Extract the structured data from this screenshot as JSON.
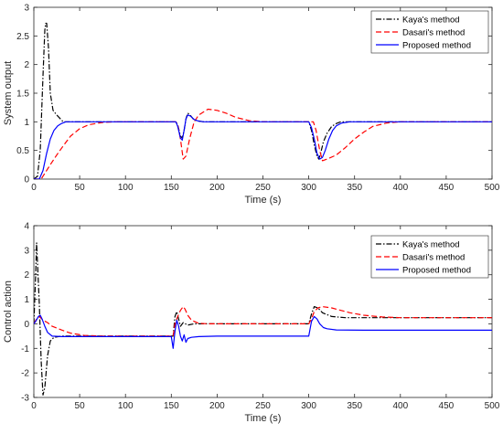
{
  "chart_data": [
    {
      "type": "line",
      "xlabel": "Time (s)",
      "ylabel": "System output",
      "xlim": [
        0,
        500
      ],
      "ylim": [
        0,
        3
      ],
      "xticks": [
        0,
        50,
        100,
        150,
        200,
        250,
        300,
        350,
        400,
        450,
        500
      ],
      "yticks": [
        0,
        0.5,
        1,
        1.5,
        2,
        2.5,
        3
      ],
      "ytick_labels": [
        "0",
        "0.5",
        "1",
        "1.5",
        "2",
        "2.5",
        "3"
      ],
      "grid": false,
      "legend_position": "top-right",
      "series": [
        {
          "name": "Kaya's method",
          "color": "#000000",
          "dash": "dashdot",
          "points": [
            [
              0,
              0
            ],
            [
              4,
              0.05
            ],
            [
              7,
              0.5
            ],
            [
              10,
              1.8
            ],
            [
              12,
              2.6
            ],
            [
              13,
              2.72
            ],
            [
              14,
              2.72
            ],
            [
              16,
              2.3
            ],
            [
              18,
              1.5
            ],
            [
              21,
              1.2
            ],
            [
              25,
              1.12
            ],
            [
              32,
              1.0
            ],
            [
              40,
              1.0
            ],
            [
              155,
              1.0
            ],
            [
              157,
              0.95
            ],
            [
              160,
              0.75
            ],
            [
              162,
              0.72
            ],
            [
              164,
              0.85
            ],
            [
              166,
              1.05
            ],
            [
              168,
              1.15
            ],
            [
              170,
              1.13
            ],
            [
              174,
              1.05
            ],
            [
              178,
              1.02
            ],
            [
              185,
              1.0
            ],
            [
              300,
              1.0
            ],
            [
              303,
              0.85
            ],
            [
              306,
              0.6
            ],
            [
              309,
              0.4
            ],
            [
              311,
              0.35
            ],
            [
              313,
              0.45
            ],
            [
              316,
              0.65
            ],
            [
              320,
              0.8
            ],
            [
              325,
              0.92
            ],
            [
              330,
              0.97
            ],
            [
              335,
              1.0
            ],
            [
              500,
              1.0
            ]
          ]
        },
        {
          "name": "Dasari's method",
          "color": "#ff0000",
          "dash": "dashed",
          "points": [
            [
              0,
              0
            ],
            [
              8,
              0.0
            ],
            [
              12,
              0.1
            ],
            [
              18,
              0.25
            ],
            [
              25,
              0.42
            ],
            [
              32,
              0.58
            ],
            [
              40,
              0.75
            ],
            [
              50,
              0.88
            ],
            [
              60,
              0.95
            ],
            [
              75,
              0.99
            ],
            [
              90,
              1.0
            ],
            [
              155,
              1.0
            ],
            [
              157,
              0.95
            ],
            [
              160,
              0.7
            ],
            [
              163,
              0.35
            ],
            [
              166,
              0.4
            ],
            [
              170,
              0.7
            ],
            [
              175,
              1.0
            ],
            [
              180,
              1.12
            ],
            [
              190,
              1.22
            ],
            [
              200,
              1.2
            ],
            [
              210,
              1.15
            ],
            [
              220,
              1.08
            ],
            [
              235,
              1.02
            ],
            [
              250,
              1.0
            ],
            [
              305,
              1.0
            ],
            [
              308,
              0.85
            ],
            [
              312,
              0.5
            ],
            [
              315,
              0.32
            ],
            [
              320,
              0.35
            ],
            [
              330,
              0.42
            ],
            [
              340,
              0.55
            ],
            [
              350,
              0.7
            ],
            [
              360,
              0.82
            ],
            [
              370,
              0.92
            ],
            [
              385,
              0.98
            ],
            [
              400,
              1.0
            ],
            [
              500,
              1.0
            ]
          ]
        },
        {
          "name": "Proposed method",
          "color": "#0000ff",
          "dash": "solid",
          "points": [
            [
              0,
              0
            ],
            [
              6,
              0.0
            ],
            [
              10,
              0.15
            ],
            [
              14,
              0.45
            ],
            [
              18,
              0.7
            ],
            [
              22,
              0.85
            ],
            [
              26,
              0.93
            ],
            [
              30,
              0.97
            ],
            [
              35,
              1.0
            ],
            [
              155,
              1.0
            ],
            [
              157,
              0.92
            ],
            [
              160,
              0.72
            ],
            [
              162,
              0.68
            ],
            [
              164,
              0.85
            ],
            [
              166,
              1.05
            ],
            [
              168,
              1.12
            ],
            [
              171,
              1.1
            ],
            [
              175,
              1.04
            ],
            [
              180,
              1.01
            ],
            [
              186,
              1.0
            ],
            [
              300,
              1.0
            ],
            [
              303,
              0.9
            ],
            [
              306,
              0.7
            ],
            [
              309,
              0.45
            ],
            [
              312,
              0.35
            ],
            [
              315,
              0.38
            ],
            [
              318,
              0.5
            ],
            [
              322,
              0.7
            ],
            [
              326,
              0.85
            ],
            [
              330,
              0.93
            ],
            [
              336,
              0.98
            ],
            [
              345,
              1.0
            ],
            [
              500,
              1.0
            ]
          ]
        }
      ]
    },
    {
      "type": "line",
      "xlabel": "Time (s)",
      "ylabel": "Control action",
      "xlim": [
        0,
        500
      ],
      "ylim": [
        -3,
        4
      ],
      "xticks": [
        0,
        50,
        100,
        150,
        200,
        250,
        300,
        350,
        400,
        450,
        500
      ],
      "yticks": [
        -3,
        -2,
        -1,
        0,
        1,
        2,
        3,
        4
      ],
      "ytick_labels": [
        "-3",
        "-2",
        "-1",
        "0",
        "1",
        "2",
        "3",
        "4"
      ],
      "grid": false,
      "legend_position": "top-right",
      "series": [
        {
          "name": "Kaya's method",
          "color": "#000000",
          "dash": "dashdot",
          "points": [
            [
              0,
              0
            ],
            [
              2,
              2.0
            ],
            [
              3,
              3.3
            ],
            [
              4,
              2.5
            ],
            [
              6,
              0.8
            ],
            [
              8,
              -1.5
            ],
            [
              10,
              -2.9
            ],
            [
              12,
              -2.6
            ],
            [
              15,
              -1.3
            ],
            [
              18,
              -0.7
            ],
            [
              22,
              -0.55
            ],
            [
              30,
              -0.5
            ],
            [
              100,
              -0.5
            ],
            [
              150,
              -0.5
            ],
            [
              152,
              -0.5
            ],
            [
              154,
              0.3
            ],
            [
              156,
              0.5
            ],
            [
              158,
              0.2
            ],
            [
              160,
              -0.1
            ],
            [
              163,
              0.05
            ],
            [
              168,
              -0.05
            ],
            [
              175,
              0.0
            ],
            [
              200,
              0.0
            ],
            [
              300,
              0.0
            ],
            [
              303,
              0.4
            ],
            [
              306,
              0.7
            ],
            [
              310,
              0.65
            ],
            [
              315,
              0.45
            ],
            [
              325,
              0.3
            ],
            [
              340,
              0.25
            ],
            [
              500,
              0.25
            ]
          ]
        },
        {
          "name": "Dasari's method",
          "color": "#ff0000",
          "dash": "dashed",
          "points": [
            [
              0,
              0
            ],
            [
              3,
              0.2
            ],
            [
              6,
              0.3
            ],
            [
              10,
              0.15
            ],
            [
              15,
              0.05
            ],
            [
              20,
              -0.1
            ],
            [
              30,
              -0.25
            ],
            [
              40,
              -0.38
            ],
            [
              55,
              -0.47
            ],
            [
              75,
              -0.5
            ],
            [
              150,
              -0.5
            ],
            [
              152,
              -0.5
            ],
            [
              154,
              0.0
            ],
            [
              157,
              0.3
            ],
            [
              160,
              0.55
            ],
            [
              163,
              0.7
            ],
            [
              165,
              0.6
            ],
            [
              168,
              0.35
            ],
            [
              172,
              0.15
            ],
            [
              180,
              0.02
            ],
            [
              190,
              0.0
            ],
            [
              300,
              0.0
            ],
            [
              303,
              0.2
            ],
            [
              306,
              0.5
            ],
            [
              310,
              0.65
            ],
            [
              315,
              0.7
            ],
            [
              325,
              0.65
            ],
            [
              335,
              0.55
            ],
            [
              345,
              0.45
            ],
            [
              360,
              0.35
            ],
            [
              380,
              0.28
            ],
            [
              400,
              0.25
            ],
            [
              500,
              0.25
            ]
          ]
        },
        {
          "name": "Proposed method",
          "color": "#0000ff",
          "dash": "solid",
          "points": [
            [
              0,
              0
            ],
            [
              2,
              0.1
            ],
            [
              5,
              0.3
            ],
            [
              7,
              0.35
            ],
            [
              9,
              0.2
            ],
            [
              12,
              -0.1
            ],
            [
              15,
              -0.35
            ],
            [
              20,
              -0.5
            ],
            [
              30,
              -0.52
            ],
            [
              100,
              -0.52
            ],
            [
              150,
              -0.52
            ],
            [
              152,
              -1.0
            ],
            [
              154,
              -0.3
            ],
            [
              156,
              0.15
            ],
            [
              158,
              -0.1
            ],
            [
              160,
              -0.5
            ],
            [
              162,
              -0.7
            ],
            [
              164,
              -0.45
            ],
            [
              166,
              -0.75
            ],
            [
              168,
              -0.6
            ],
            [
              172,
              -0.55
            ],
            [
              180,
              -0.52
            ],
            [
              200,
              -0.5
            ],
            [
              300,
              -0.5
            ],
            [
              303,
              0.1
            ],
            [
              306,
              0.3
            ],
            [
              309,
              0.2
            ],
            [
              312,
              0.0
            ],
            [
              316,
              -0.15
            ],
            [
              320,
              -0.2
            ],
            [
              330,
              -0.25
            ],
            [
              360,
              -0.26
            ],
            [
              450,
              -0.26
            ],
            [
              500,
              -0.26
            ]
          ]
        }
      ]
    }
  ]
}
